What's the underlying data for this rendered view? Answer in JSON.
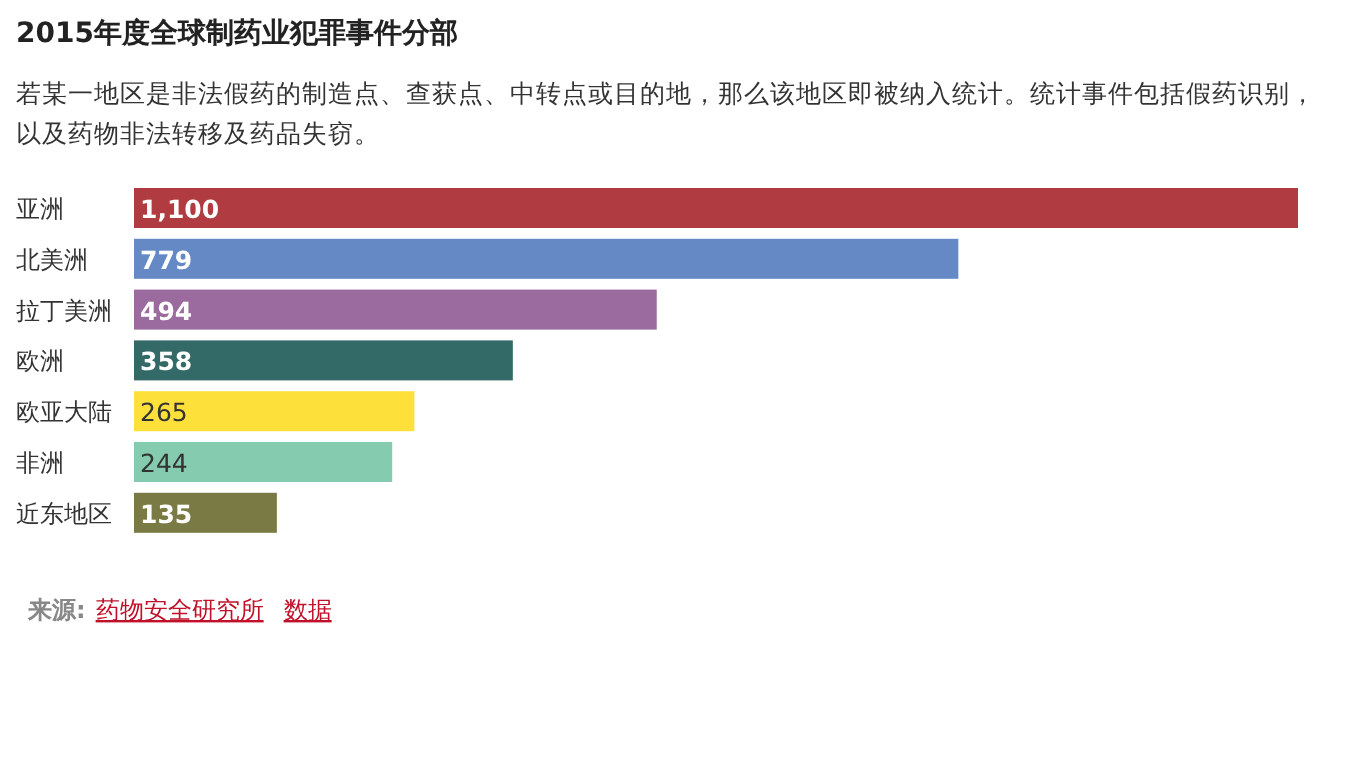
{
  "chart_data": {
    "type": "bar",
    "orientation": "horizontal",
    "title": "2015年度全球制药业犯罪事件分部",
    "subtitle": "若某一地区是非法假药的制造点、查获点、中转点或目的地，那么该地区即被纳入统计。统计事件包括假药识别，以及药物非法转移及药品失窃。",
    "categories": [
      "亚洲",
      "北美洲",
      "拉丁美洲",
      "欧洲",
      "欧亚大陆",
      "非洲",
      "近东地区"
    ],
    "values": [
      1100,
      779,
      494,
      358,
      265,
      244,
      135
    ],
    "colors": [
      "#b03c41",
      "#6589c5",
      "#9b6a9e",
      "#336966",
      "#fde03a",
      "#84cbb0",
      "#7a7a45"
    ],
    "value_labels": [
      "1,100",
      "779",
      "494",
      "358",
      "265",
      "244",
      "135"
    ],
    "annotations": [
      "来源:",
      "药物安全研究所",
      "数据"
    ]
  }
}
